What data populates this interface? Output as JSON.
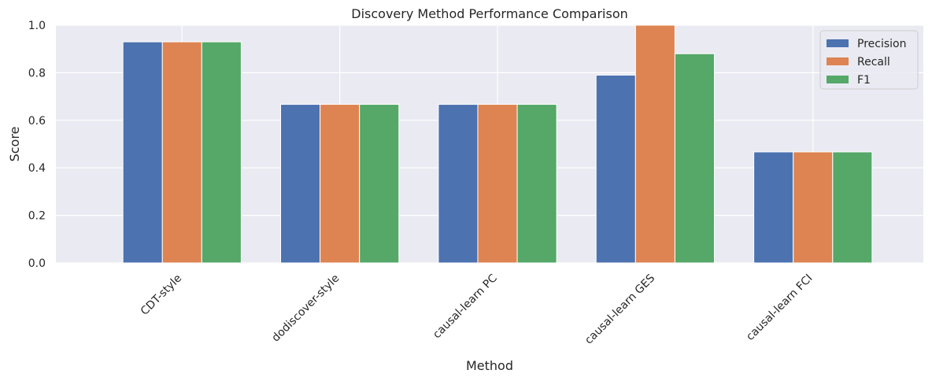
{
  "chart_data": {
    "type": "bar",
    "title": "Discovery Method Performance Comparison",
    "xlabel": "Method",
    "ylabel": "Score",
    "ylim": [
      0,
      1.0
    ],
    "yticks": [
      0.0,
      0.2,
      0.4,
      0.6,
      0.8,
      1.0
    ],
    "ytick_labels": [
      "0.0",
      "0.2",
      "0.4",
      "0.6",
      "0.8",
      "1.0"
    ],
    "categories": [
      "CDT-style",
      "dodiscover-style",
      "causal-learn PC",
      "causal-learn GES",
      "causal-learn FCI"
    ],
    "series": [
      {
        "name": "Precision",
        "color": "#4c72b0",
        "values": [
          0.93,
          0.667,
          0.667,
          0.79,
          0.467
        ]
      },
      {
        "name": "Recall",
        "color": "#dd8452",
        "values": [
          0.93,
          0.667,
          0.667,
          1.0,
          0.467
        ]
      },
      {
        "name": "F1",
        "color": "#55a868",
        "values": [
          0.93,
          0.667,
          0.667,
          0.88,
          0.467
        ]
      }
    ],
    "grid": true,
    "legend_position": "top-right",
    "background_color": "#eaeaf2",
    "grid_color": "#ffffff"
  }
}
